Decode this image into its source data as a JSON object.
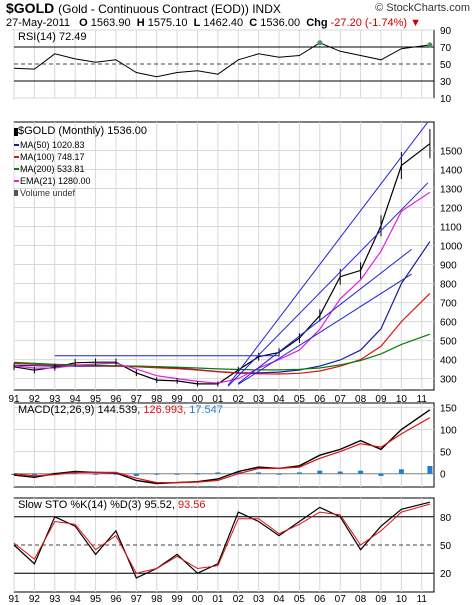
{
  "header": {
    "symbol": "$GOLD",
    "name": "(Gold - Continuous Contract (EOD)) INDX",
    "brand": "© StockCharts.com",
    "date": "27-May-2011",
    "open_label": "O",
    "open": "1563.90",
    "high_label": "H",
    "high": "1575.10",
    "low_label": "L",
    "low": "1462.40",
    "close_label": "C",
    "close": "1536.00",
    "chg_label": "Chg",
    "chg": "-27.20 (-1.74%)"
  },
  "colors": {
    "price": "#000000",
    "ma50": "#1a1aa0",
    "ma100": "#e01010",
    "ma200": "#0a7a0a",
    "ema21": "#e020e0",
    "trendline": "#2020e0",
    "macd_signal": "#e01010",
    "macd_hist": "#1e7fd0",
    "sto_d": "#e01010",
    "rsi_fill": "#3c9a5a",
    "grid": "#d8d8d8"
  },
  "chart_data": [
    {
      "type": "line",
      "panel": "rsi",
      "title": "RSI(14) 72.49",
      "ylim": [
        10,
        90
      ],
      "yticks": [
        10,
        30,
        50,
        70,
        90
      ],
      "grid": true,
      "x": [
        1991,
        1992,
        1993,
        1994,
        1995,
        1996,
        1997,
        1998,
        1999,
        2000,
        2001,
        2002,
        2003,
        2004,
        2005,
        2006,
        2007,
        2008,
        2009,
        2010,
        2011.4
      ],
      "series": [
        {
          "name": "RSI(14)",
          "values": [
            45,
            44,
            62,
            56,
            52,
            55,
            40,
            35,
            40,
            42,
            38,
            55,
            62,
            58,
            60,
            75,
            65,
            60,
            55,
            68,
            72.49
          ]
        }
      ]
    },
    {
      "type": "line",
      "panel": "price",
      "title": "$GOLD (Monthly) 1536.00",
      "ylim": [
        240,
        1650
      ],
      "yticks": [
        300,
        400,
        500,
        600,
        700,
        800,
        900,
        1000,
        1100,
        1200,
        1300,
        1400,
        1500
      ],
      "grid": true,
      "x": [
        1991,
        1992,
        1993,
        1994,
        1995,
        1996,
        1997,
        1998,
        1999,
        2000,
        2001,
        2002,
        2003,
        2004,
        2005,
        2006,
        2007,
        2008,
        2009,
        2010,
        2011.4
      ],
      "series": [
        {
          "name": "$GOLD (Monthly) 1536.00",
          "values": [
            362,
            344,
            360,
            383,
            386,
            386,
            330,
            292,
            288,
            272,
            272,
            345,
            415,
            438,
            513,
            632,
            836,
            869,
            1104,
            1421,
            1536
          ]
        },
        {
          "name": "MA(50) 1020.83",
          "values": [
            370,
            368,
            366,
            366,
            366,
            366,
            365,
            362,
            356,
            347,
            337,
            330,
            330,
            334,
            345,
            366,
            398,
            450,
            562,
            800,
            1020.83
          ]
        },
        {
          "name": "MA(100) 748.17",
          "values": [
            380,
            375,
            372,
            370,
            368,
            366,
            362,
            357,
            352,
            345,
            336,
            329,
            325,
            324,
            328,
            340,
            365,
            400,
            470,
            600,
            748.17
          ]
        },
        {
          "name": "MA(200) 533.81",
          "values": [
            385,
            380,
            375,
            372,
            370,
            368,
            366,
            363,
            360,
            356,
            351,
            348,
            346,
            346,
            349,
            356,
            372,
            395,
            430,
            480,
            533.81
          ]
        },
        {
          "name": "EMA(21) 1280.00",
          "values": [
            368,
            355,
            356,
            370,
            377,
            381,
            350,
            315,
            300,
            285,
            276,
            300,
            355,
            400,
            450,
            560,
            720,
            820,
            970,
            1180,
            1280
          ]
        }
      ],
      "legend": [
        "$GOLD (Monthly) 1536.00",
        "MA(50) 1020.83",
        "MA(100) 748.17",
        "MA(200) 533.81",
        "EMA(21) 1280.00",
        "Volume undef"
      ],
      "annotations": {
        "horizontal_line": {
          "from": 1993,
          "to": 2004,
          "value": 420
        },
        "trend_channel_upper": [
          [
            2001.5,
            265
          ],
          [
            2011.3,
            1650
          ]
        ],
        "trend_channel_lower": [
          [
            2001.5,
            260
          ],
          [
            2011.3,
            1330
          ]
        ],
        "fan_lines": [
          [
            [
              2002,
              270
            ],
            [
              2010.5,
              850
            ]
          ],
          [
            [
              2002,
              275
            ],
            [
              2010.5,
              980
            ]
          ]
        ]
      }
    },
    {
      "type": "line",
      "panel": "macd",
      "title": "MACD(12,26,9) 144.539, 126.993, 17.547",
      "ylim": [
        -30,
        160
      ],
      "yticks": [
        0,
        50,
        100,
        150
      ],
      "grid": true,
      "x": [
        1991,
        1992,
        1993,
        1994,
        1995,
        1996,
        1997,
        1998,
        1999,
        2000,
        2001,
        2002,
        2003,
        2004,
        2005,
        2006,
        2007,
        2008,
        2009,
        2010,
        2011.4
      ],
      "series": [
        {
          "name": "MACD(12,26,9) 144.539",
          "values": [
            -3,
            -8,
            0,
            5,
            3,
            2,
            -15,
            -22,
            -20,
            -18,
            -12,
            5,
            15,
            12,
            18,
            42,
            55,
            75,
            55,
            100,
            144.539
          ]
        },
        {
          "name": "126.993",
          "values": [
            0,
            -5,
            -2,
            3,
            3,
            3,
            -10,
            -20,
            -20,
            -19,
            -15,
            0,
            12,
            12,
            15,
            35,
            50,
            68,
            60,
            90,
            126.993
          ]
        },
        {
          "name": "17.547",
          "values": [
            -3,
            -3,
            2,
            2,
            0,
            -1,
            -5,
            -2,
            0,
            1,
            3,
            5,
            3,
            0,
            3,
            7,
            5,
            7,
            -5,
            10,
            17.547
          ]
        }
      ]
    },
    {
      "type": "line",
      "panel": "slow_sto",
      "title": "Slow STO %K(14) %D(3) 95.52, 93.56",
      "ylim": [
        0,
        100
      ],
      "yticks": [
        20,
        50,
        80
      ],
      "grid": true,
      "x": [
        1991,
        1992,
        1993,
        1994,
        1995,
        1996,
        1997,
        1998,
        1999,
        2000,
        2001,
        2002,
        2003,
        2004,
        2005,
        2006,
        2007,
        2008,
        2009,
        2010,
        2011.4
      ],
      "series": [
        {
          "name": "%K(14) 95.52",
          "values": [
            50,
            30,
            80,
            70,
            40,
            65,
            15,
            25,
            40,
            20,
            30,
            85,
            75,
            60,
            75,
            90,
            80,
            45,
            70,
            88,
            95.52
          ]
        },
        {
          "name": "%D(3) 93.56",
          "values": [
            52,
            35,
            75,
            72,
            45,
            60,
            20,
            25,
            38,
            25,
            28,
            78,
            78,
            62,
            72,
            85,
            82,
            50,
            65,
            85,
            93.56
          ]
        }
      ]
    }
  ],
  "panels": {
    "rsi_label": "RSI(14) 72.49",
    "price_label_symbol": "$GOLD (Monthly)",
    "price_label_value": "1536.00",
    "legend": [
      {
        "text": "MA(50) 1020.83",
        "color": "#1a1aa0"
      },
      {
        "text": "MA(100) 748.17",
        "color": "#e01010"
      },
      {
        "text": "MA(200) 533.81",
        "color": "#0a7a0a"
      },
      {
        "text": "EMA(21) 1280.00",
        "color": "#e020e0"
      }
    ],
    "volume_label": "Volume undef",
    "macd_label": "MACD(12,26,9)",
    "macd_v1": "144.539,",
    "macd_v2": "126.993,",
    "macd_v3": "17.547",
    "sto_label": "Slow STO %K(14) %D(3)",
    "sto_v1": "95.52,",
    "sto_v2": "93.56"
  },
  "x_ticks": [
    "91",
    "92",
    "93",
    "94",
    "95",
    "96",
    "97",
    "98",
    "99",
    "00",
    "01",
    "02",
    "03",
    "04",
    "05",
    "06",
    "07",
    "08",
    "09",
    "10",
    "11"
  ]
}
